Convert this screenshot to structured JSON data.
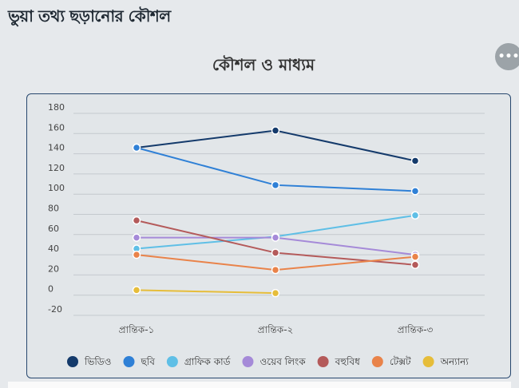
{
  "page": {
    "title": "ভুয়া তথ্য ছড়ানোর কৌশল",
    "menu_icon": "more-horizontal-icon"
  },
  "colors": {
    "ভিডিও": "#143a6b",
    "ছবি": "#2f80d6",
    "গ্রাফিক কার্ড": "#5fbfe6",
    "ওয়েব লিংক": "#a58ad8",
    "বহুবিধ": "#b45a5a",
    "টেক্সট": "#e9834a",
    "অন্যান্য": "#e6bd3a"
  },
  "chart_data": {
    "type": "line",
    "title": "কৌশল ও মাধ্যম",
    "xlabel": "",
    "ylabel": "",
    "categories": [
      "প্রান্তিক-১",
      "প্রান্তিক-২",
      "প্রান্তিক-৩"
    ],
    "ylim": [
      -20,
      180
    ],
    "yticks": [
      -20,
      0,
      20,
      40,
      60,
      80,
      100,
      120,
      140,
      160,
      180
    ],
    "grid": true,
    "legend_position": "bottom",
    "series": [
      {
        "name": "ভিডিও",
        "values": [
          146,
          163,
          133
        ]
      },
      {
        "name": "ছবি",
        "values": [
          146,
          109,
          103
        ]
      },
      {
        "name": "গ্রাফিক কার্ড",
        "values": [
          46,
          58,
          79
        ]
      },
      {
        "name": "ওয়েব লিংক",
        "values": [
          57,
          57,
          40
        ]
      },
      {
        "name": "বহুবিধ",
        "values": [
          74,
          42,
          30
        ]
      },
      {
        "name": "টেক্সট",
        "values": [
          40,
          25,
          38
        ]
      },
      {
        "name": "অন্যান্য",
        "values": [
          5,
          2,
          null
        ]
      }
    ]
  }
}
